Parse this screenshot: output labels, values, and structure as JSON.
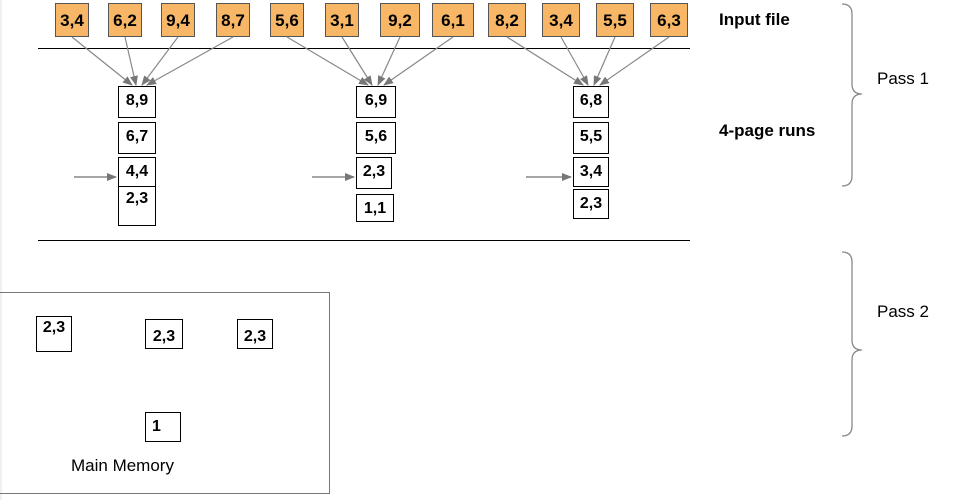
{
  "input_file": {
    "label": "Input file",
    "pages": [
      "3,4",
      "6,2",
      "9,4",
      "8,7",
      "5,6",
      "3,1",
      "9,2",
      "6,1",
      "8,2",
      "3,4",
      "5,5",
      "6,3"
    ]
  },
  "runs_label": "4-page runs",
  "runs": [
    {
      "pages": [
        "8,9",
        "6,7",
        "4,4",
        "2,3"
      ]
    },
    {
      "pages": [
        "6,9",
        "5,6",
        "2,3",
        "1,1"
      ]
    },
    {
      "pages": [
        "6,8",
        "5,5",
        "3,4",
        "2,3"
      ]
    }
  ],
  "passes": {
    "pass1": "Pass 1",
    "pass2": "Pass 2"
  },
  "memory": {
    "label": "Main Memory",
    "input_buffers": [
      "2,3",
      "2,3",
      "2,3"
    ],
    "output_buffer": "1"
  }
}
